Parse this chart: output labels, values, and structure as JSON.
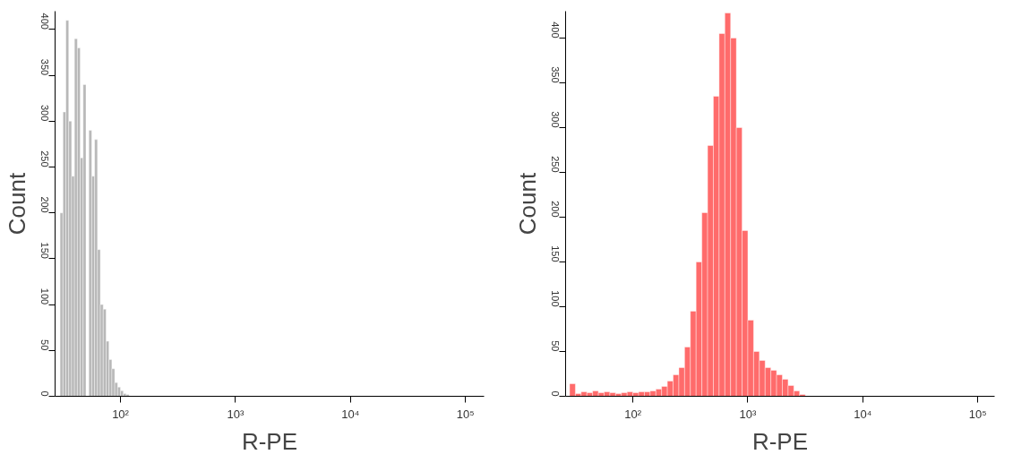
{
  "chart_data": [
    {
      "type": "histogram",
      "xlabel": "R-PE",
      "ylabel": "Count",
      "log": "x",
      "grid": false,
      "color": "#b8b8b8",
      "bins": [
        28.18,
        29.85,
        31.62,
        33.5,
        35.48,
        37.58,
        39.81,
        42.17,
        44.67,
        47.32,
        50.12,
        53.09,
        56.23,
        59.57,
        63.1,
        66.83,
        70.79,
        74.99,
        79.43,
        84.14,
        89.13,
        94.41,
        100,
        105.9,
        112.2,
        118.9
      ],
      "values": [
        null,
        200,
        310,
        410,
        300,
        240,
        390,
        380,
        260,
        340,
        null,
        290,
        240,
        280,
        160,
        100,
        95,
        60,
        40,
        30,
        15,
        10,
        6,
        3,
        2
      ],
      "xlim": [
        27,
        145000
      ],
      "ylim": [
        0,
        420
      ],
      "xticks": [
        {
          "value": 100,
          "label": "10²"
        },
        {
          "value": 1000,
          "label": "10³"
        },
        {
          "value": 10000,
          "label": "10⁴"
        },
        {
          "value": 100000,
          "label": "10⁵"
        }
      ],
      "yticks": [
        0,
        50,
        100,
        150,
        200,
        250,
        300,
        350,
        400
      ]
    },
    {
      "type": "histogram",
      "xlabel": "R-PE",
      "ylabel": "Count",
      "log": "x",
      "grid": false,
      "color": "#ff6b6b",
      "bins": [
        28.18,
        31.62,
        35.48,
        39.81,
        44.67,
        50.12,
        56.23,
        63.1,
        70.79,
        79.43,
        89.13,
        100,
        112.2,
        125.9,
        141.3,
        158.5,
        177.8,
        199.5,
        223.9,
        251.2,
        281.8,
        316.2,
        354.8,
        398.1,
        446.7,
        501.2,
        562.3,
        631.0,
        707.9,
        794.3,
        891.3,
        1000,
        1122,
        1259,
        1413,
        1585,
        1778,
        1995,
        2239,
        2512,
        2818,
        3162
      ],
      "values": [
        14,
        3,
        5,
        4,
        6,
        4,
        5,
        4,
        3,
        4,
        5,
        4,
        5,
        5,
        6,
        8,
        11,
        17,
        24,
        32,
        55,
        95,
        150,
        205,
        280,
        335,
        405,
        428,
        400,
        300,
        185,
        85,
        50,
        40,
        32,
        29,
        24,
        19,
        12,
        6,
        2
      ],
      "xlim": [
        26,
        140000
      ],
      "ylim": [
        0,
        430
      ],
      "xticks": [
        {
          "value": 100,
          "label": "10²"
        },
        {
          "value": 1000,
          "label": "10³"
        },
        {
          "value": 10000,
          "label": "10⁴"
        },
        {
          "value": 100000,
          "label": "10⁵"
        }
      ],
      "yticks": [
        0,
        50,
        100,
        150,
        200,
        250,
        300,
        350,
        400
      ]
    }
  ]
}
